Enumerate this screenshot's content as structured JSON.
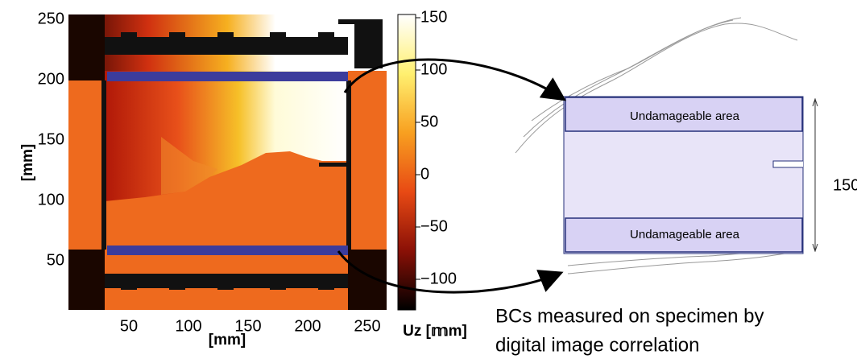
{
  "left_plot": {
    "y_ticks": [
      "250",
      "200",
      "150",
      "100",
      "50"
    ],
    "x_ticks": [
      "50",
      "100",
      "150",
      "200",
      "250"
    ],
    "x_label": "[mm]",
    "y_label": "[mm]",
    "colorbar_ticks": [
      "150",
      "100",
      "50",
      "0",
      "−50",
      "−100"
    ],
    "colorbar_label": "Uz [𝕞m]"
  },
  "specimen": {
    "top_area_label": "Undamageable area",
    "bottom_area_label": "Undamageable area",
    "height_label": "150"
  },
  "caption": {
    "lines": [
      "BCs measured on specimen by",
      "digital image correlation"
    ]
  }
}
